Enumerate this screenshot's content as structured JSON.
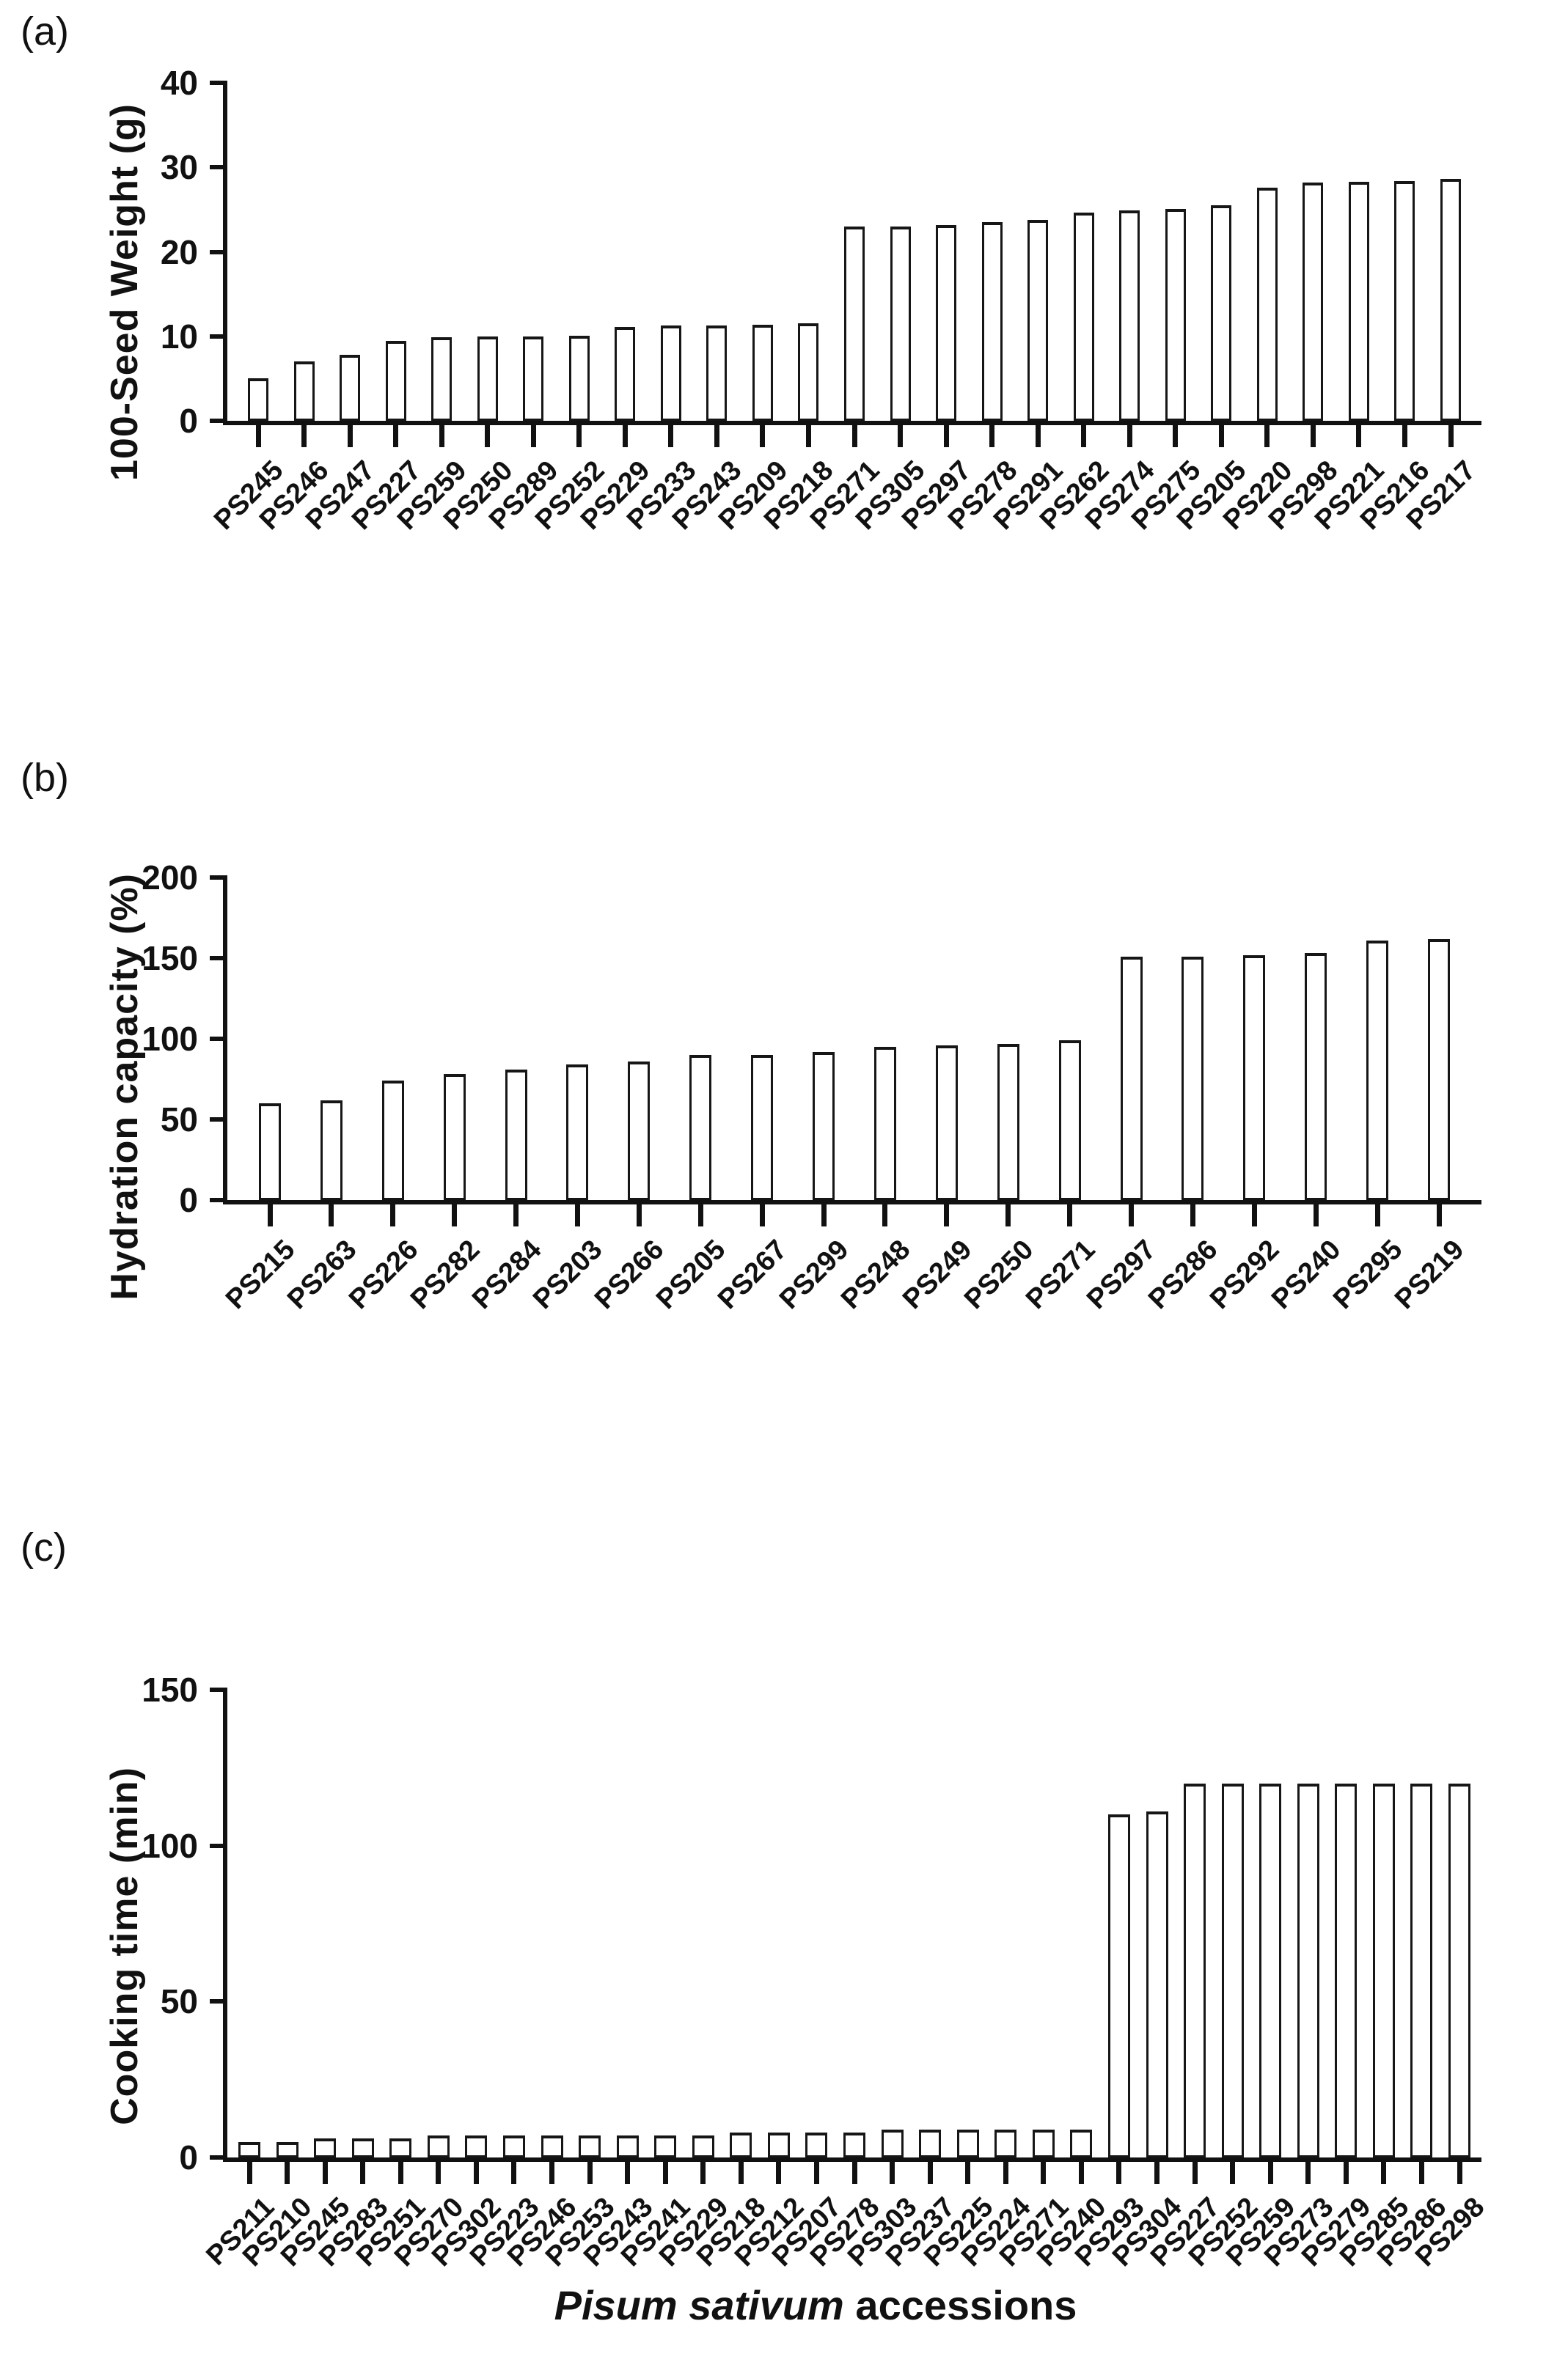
{
  "figure": {
    "x_axis_title_italic": "Pisum sativum",
    "x_axis_title_rest": " accessions"
  },
  "chart_data": [
    {
      "type": "bar",
      "panel_label": "(a)",
      "title": "",
      "xlabel": "",
      "ylabel": "100-Seed Weight (g)",
      "ylim": [
        0,
        40
      ],
      "yticks": [
        0,
        10,
        20,
        30,
        40
      ],
      "grid": false,
      "legend": "none",
      "bar_fill": "#ffffff",
      "bar_border": "#161616",
      "categories": [
        "PS245",
        "PS246",
        "PS247",
        "PS227",
        "PS259",
        "PS250",
        "PS289",
        "PS252",
        "PS229",
        "PS233",
        "PS243",
        "PS209",
        "PS218",
        "PS271",
        "PS305",
        "PS297",
        "PS278",
        "PS291",
        "PS262",
        "PS274",
        "PS275",
        "PS205",
        "PS220",
        "PS298",
        "PS221",
        "PS216",
        "PS217"
      ],
      "values": [
        5.0,
        7.0,
        7.8,
        9.5,
        9.9,
        10.0,
        10.0,
        10.1,
        11.1,
        11.3,
        11.3,
        11.4,
        11.5,
        23.0,
        23.0,
        23.2,
        23.5,
        23.8,
        24.6,
        24.9,
        25.1,
        25.5,
        27.6,
        28.2,
        28.3,
        28.4,
        28.6
      ]
    },
    {
      "type": "bar",
      "panel_label": "(b)",
      "title": "",
      "xlabel": "",
      "ylabel": "Hydration capacity (%)",
      "ylim": [
        0,
        200
      ],
      "yticks": [
        0,
        50,
        100,
        150,
        200
      ],
      "grid": false,
      "legend": "none",
      "bar_fill": "#ffffff",
      "bar_border": "#161616",
      "categories": [
        "PS215",
        "PS263",
        "PS226",
        "PS282",
        "PS284",
        "PS203",
        "PS266",
        "PS205",
        "PS267",
        "PS299",
        "PS248",
        "PS249",
        "PS250",
        "PS271",
        "PS297",
        "PS286",
        "PS292",
        "PS240",
        "PS295",
        "PS219"
      ],
      "values": [
        60,
        62,
        74,
        78,
        81,
        84,
        86,
        90,
        90,
        92,
        95,
        96,
        97,
        99,
        151,
        151,
        152,
        153,
        161,
        162
      ]
    },
    {
      "type": "bar",
      "panel_label": "(c)",
      "title": "",
      "xlabel": "Pisum sativum accessions",
      "ylabel": "Cooking time (min)",
      "ylim": [
        0,
        150
      ],
      "yticks": [
        0,
        50,
        100,
        150
      ],
      "grid": false,
      "legend": "none",
      "bar_fill": "#ffffff",
      "bar_border": "#161616",
      "categories": [
        "PS211",
        "PS210",
        "PS245",
        "PS283",
        "PS251",
        "PS270",
        "PS302",
        "PS223",
        "PS246",
        "PS253",
        "PS243",
        "PS241",
        "PS229",
        "PS218",
        "PS212",
        "PS207",
        "PS278",
        "PS303",
        "PS237",
        "PS225",
        "PS224",
        "PS271",
        "PS240",
        "PS293",
        "PS304",
        "PS227",
        "PS252",
        "PS259",
        "PS273",
        "PS279",
        "PS285",
        "PS286",
        "PS298"
      ],
      "values": [
        5,
        5,
        6,
        6,
        6,
        7,
        7,
        7,
        7,
        7,
        7,
        7,
        7,
        8,
        8,
        8,
        8,
        9,
        9,
        9,
        9,
        9,
        9,
        110,
        111,
        120,
        120,
        120,
        120,
        120,
        120,
        120,
        120
      ]
    }
  ]
}
